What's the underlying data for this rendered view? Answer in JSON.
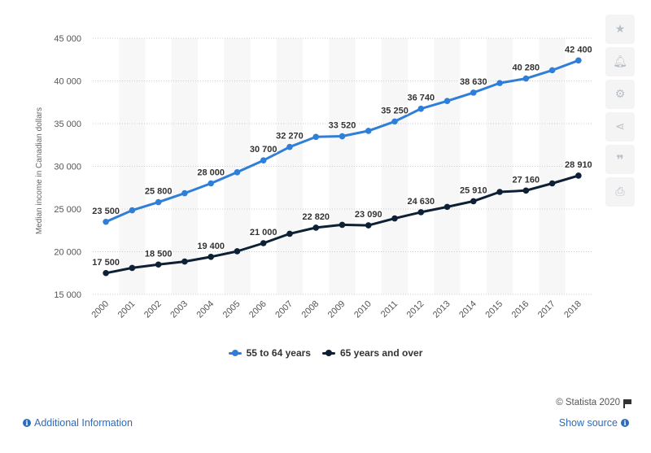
{
  "chart_data": {
    "type": "line",
    "title": "",
    "xlabel": "",
    "ylabel": "Median income in Canadian dollars",
    "ylim": [
      15000,
      45000
    ],
    "yticks": [
      15000,
      20000,
      25000,
      30000,
      35000,
      40000,
      45000
    ],
    "ytick_labels": [
      "15 000",
      "20 000",
      "25 000",
      "30 000",
      "35 000",
      "40 000",
      "45 000"
    ],
    "grid": true,
    "legend_position": "bottom",
    "categories": [
      "2000",
      "2001",
      "2002",
      "2003",
      "2004",
      "2005",
      "2006",
      "2007",
      "2008",
      "2009",
      "2010",
      "2011",
      "2012",
      "2013",
      "2014",
      "2015",
      "2016",
      "2017",
      "2018"
    ],
    "series": [
      {
        "name": "55 to 64 years",
        "color": "#2f7ed8",
        "values": [
          23500,
          24850,
          25800,
          26850,
          28000,
          29300,
          30700,
          32270,
          33450,
          33520,
          34150,
          35250,
          36740,
          37650,
          38630,
          39750,
          40280,
          41250,
          42400
        ],
        "labels": [
          "23 500",
          null,
          "25 800",
          null,
          "28 000",
          null,
          "30 700",
          "32 270",
          null,
          "33 520",
          null,
          "35 250",
          "36 740",
          null,
          "38 630",
          null,
          "40 280",
          null,
          "42 400"
        ]
      },
      {
        "name": "65 years and over",
        "color": "#0d2035",
        "values": [
          17500,
          18100,
          18500,
          18850,
          19400,
          20050,
          21000,
          22100,
          22820,
          23150,
          23090,
          23900,
          24630,
          25250,
          25910,
          27000,
          27160,
          28000,
          28910
        ],
        "labels": [
          "17 500",
          null,
          "18 500",
          null,
          "19 400",
          null,
          "21 000",
          null,
          "22 820",
          null,
          "23 090",
          null,
          "24 630",
          null,
          "25 910",
          null,
          "27 160",
          null,
          "28 910"
        ]
      }
    ]
  },
  "toolbar": {
    "icons": [
      "star-icon",
      "bell-icon",
      "gear-icon",
      "share-icon",
      "quote-icon",
      "print-icon"
    ]
  },
  "credits": {
    "text": "© Statista 2020"
  },
  "footer": {
    "additional_info": "Additional Information",
    "show_source": "Show source"
  }
}
